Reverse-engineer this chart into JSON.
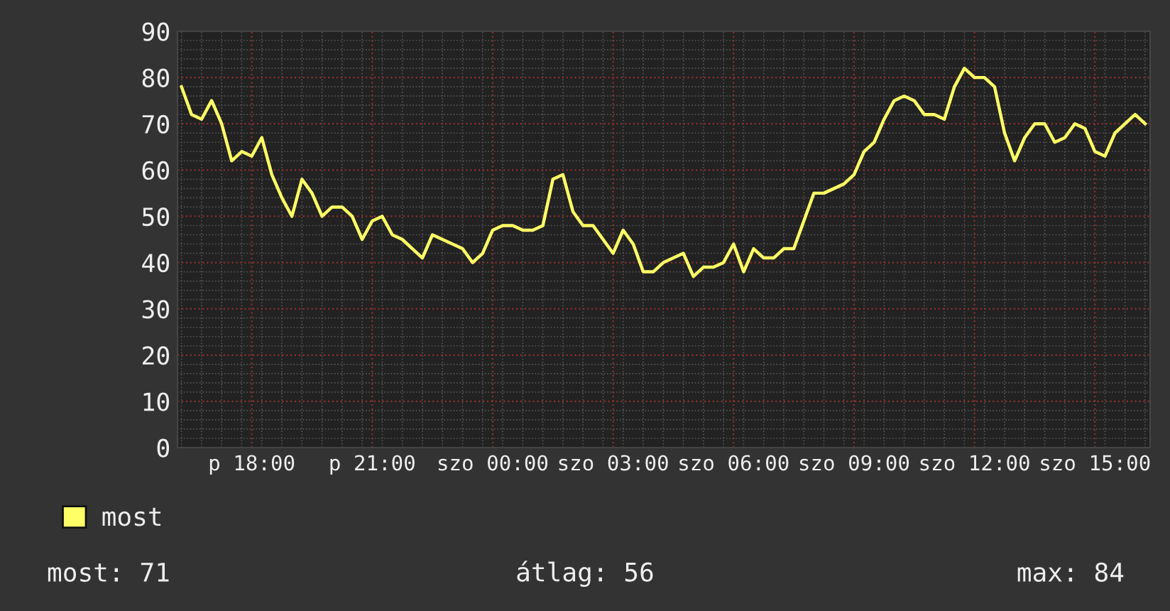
{
  "chart_data": {
    "type": "line",
    "categories": [
      null,
      null,
      null,
      null,
      null,
      null,
      null,
      "p 18:00",
      null,
      null,
      null,
      null,
      null,
      null,
      null,
      null,
      null,
      null,
      null,
      "p 21:00",
      null,
      null,
      null,
      null,
      null,
      null,
      null,
      null,
      null,
      null,
      null,
      "szo 00:00",
      null,
      null,
      null,
      null,
      null,
      null,
      null,
      null,
      null,
      null,
      null,
      "szo 03:00",
      null,
      null,
      null,
      null,
      null,
      null,
      null,
      null,
      null,
      null,
      null,
      "szo 06:00",
      null,
      null,
      null,
      null,
      null,
      null,
      null,
      null,
      null,
      null,
      null,
      "szo 09:00",
      null,
      null,
      null,
      null,
      null,
      null,
      null,
      null,
      null,
      null,
      null,
      "szo 12:00",
      null,
      null,
      null,
      null,
      null,
      null,
      null,
      null,
      null,
      null,
      null,
      "szo 15:00",
      null,
      null,
      null,
      null,
      null
    ],
    "series": [
      {
        "name": "most",
        "color": "#ffff66",
        "values": [
          78,
          72,
          71,
          75,
          70,
          62,
          64,
          63,
          67,
          59,
          54,
          50,
          58,
          55,
          50,
          52,
          52,
          50,
          45,
          49,
          50,
          46,
          45,
          43,
          41,
          46,
          45,
          44,
          43,
          40,
          42,
          47,
          48,
          48,
          47,
          47,
          48,
          58,
          59,
          51,
          48,
          48,
          45,
          42,
          47,
          44,
          38,
          38,
          40,
          41,
          42,
          37,
          39,
          39,
          40,
          44,
          38,
          43,
          41,
          41,
          43,
          43,
          49,
          55,
          55,
          56,
          57,
          59,
          64,
          66,
          71,
          75,
          76,
          75,
          72,
          72,
          71,
          78,
          82,
          80,
          80,
          78,
          68,
          62,
          67,
          70,
          70,
          66,
          67,
          70,
          69,
          64,
          63,
          68,
          70,
          72,
          70
        ]
      }
    ],
    "ylim": [
      0,
      90
    ],
    "yticks": [
      0,
      10,
      20,
      30,
      40,
      50,
      60,
      70,
      80,
      90
    ],
    "grid": true,
    "legend": "bottom left",
    "marker": "none",
    "line_style": "solid",
    "annotations": [
      "most: 71",
      "átlag: 56",
      "max: 84"
    ]
  }
}
